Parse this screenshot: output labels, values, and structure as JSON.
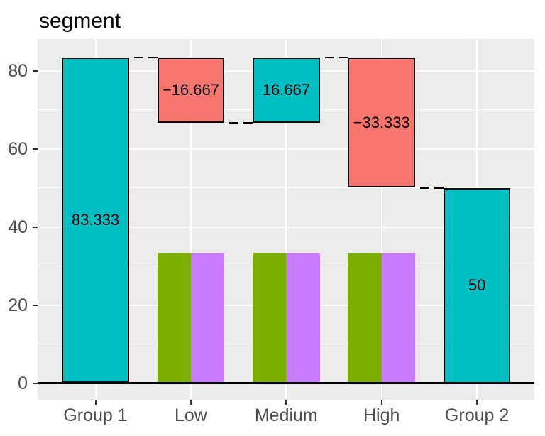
{
  "title": "segment",
  "chart_data": {
    "type": "bar",
    "subtype": "waterfall",
    "title": "segment",
    "categories": [
      "Group 1",
      "Low",
      "Medium",
      "High",
      "Group 2"
    ],
    "xlabel": "",
    "ylabel": "",
    "y_ticks": [
      0,
      20,
      40,
      60,
      80
    ],
    "y_minor_ticks": [
      10,
      30,
      50,
      70
    ],
    "ylim": [
      -4.2,
      87.6
    ],
    "grid": "on",
    "legend": "none",
    "bars": [
      {
        "category": "Group 1",
        "label": "83.333",
        "value": 83.333,
        "y0": 0,
        "y1": 83.333,
        "fill": "teal"
      },
      {
        "category": "Low",
        "label": "−16.667",
        "value": -16.667,
        "y0": 66.667,
        "y1": 83.333,
        "fill": "red"
      },
      {
        "category": "Medium",
        "label": "16.667",
        "value": 16.667,
        "y0": 66.667,
        "y1": 83.333,
        "fill": "teal"
      },
      {
        "category": "High",
        "label": "−33.333",
        "value": -33.333,
        "y0": 50,
        "y1": 83.333,
        "fill": "red"
      },
      {
        "category": "Group 2",
        "label": "50",
        "value": 50,
        "y0": 0,
        "y1": 50,
        "fill": "teal"
      }
    ],
    "sub_bars": [
      {
        "category": "Low",
        "side": "left",
        "y0": 0,
        "y1": 33.333,
        "fill": "green"
      },
      {
        "category": "Low",
        "side": "right",
        "y0": 0,
        "y1": 33.333,
        "fill": "purple"
      },
      {
        "category": "Medium",
        "side": "left",
        "y0": 0,
        "y1": 33.333,
        "fill": "green"
      },
      {
        "category": "Medium",
        "side": "right",
        "y0": 0,
        "y1": 33.333,
        "fill": "purple"
      },
      {
        "category": "High",
        "side": "left",
        "y0": 0,
        "y1": 33.333,
        "fill": "green"
      },
      {
        "category": "High",
        "side": "right",
        "y0": 0,
        "y1": 33.333,
        "fill": "purple"
      }
    ],
    "connectors": [
      {
        "from_index": 0,
        "to_index": 1,
        "y": 83.333
      },
      {
        "from_index": 1,
        "to_index": 2,
        "y": 66.667
      },
      {
        "from_index": 2,
        "to_index": 3,
        "y": 83.333
      },
      {
        "from_index": 3,
        "to_index": 4,
        "y": 50
      }
    ],
    "colors": {
      "teal": "#00BFC4",
      "red": "#F8766D",
      "green": "#7CAE00",
      "purple": "#C77CFF"
    }
  },
  "style": {
    "panel_bg": "#EBEBEB",
    "grid_color": "#FFFFFF",
    "axis_text_color": "#4D4D4D",
    "tick_color": "#333333",
    "bar_border_color": "#000000",
    "baseline_color": "#000000",
    "title_color": "#000000"
  }
}
